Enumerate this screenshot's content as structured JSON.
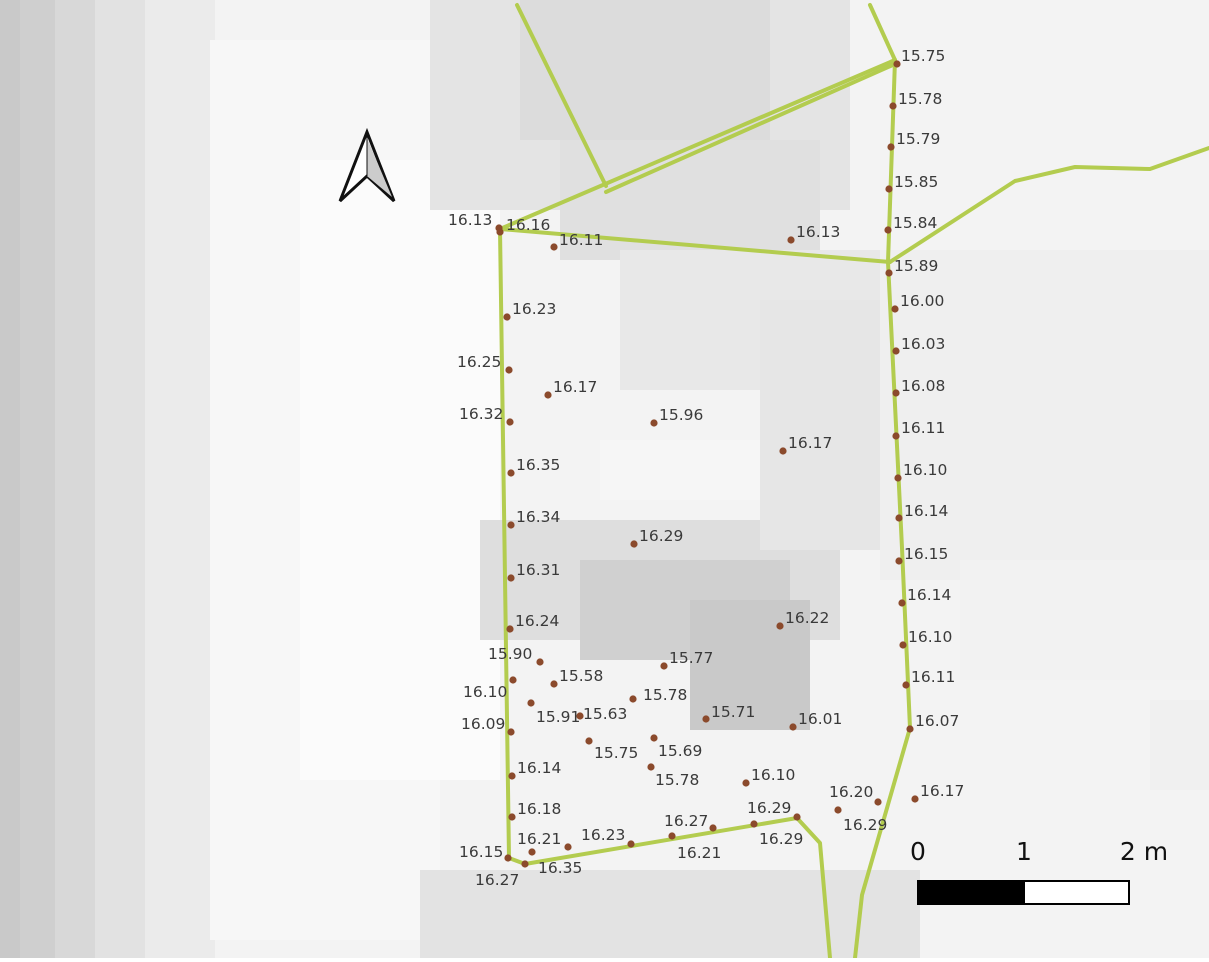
{
  "colors": {
    "boundary_line": "#b3cc4f",
    "spot_point": "#8b4a2c",
    "label_text": "#3a3a3a",
    "scale_dark": "#000000",
    "scale_light": "#ffffff"
  },
  "north_arrow": {
    "icon": "north-arrow-icon"
  },
  "scale_bar": {
    "labels": [
      "0",
      "1",
      "2 m"
    ],
    "unit": "m",
    "ticks_m": [
      0,
      1,
      2
    ]
  },
  "spot_heights": [
    "15.75",
    "15.78",
    "15.79",
    "15.85",
    "15.84",
    "16.13",
    "15.89",
    "16.00",
    "16.03",
    "16.08",
    "16.11",
    "16.10",
    "16.14",
    "16.15",
    "16.14",
    "16.10",
    "16.11",
    "16.07",
    "16.17",
    "16.13",
    "16.16",
    "16.11",
    "16.23",
    "16.25",
    "16.17",
    "16.32",
    "15.96",
    "16.17",
    "16.35",
    "16.34",
    "16.29",
    "16.31",
    "16.24",
    "16.22",
    "15.90",
    "15.77",
    "16.10",
    "15.58",
    "15.78",
    "15.91",
    "15.63",
    "15.71",
    "16.09",
    "16.01",
    "15.75",
    "15.69",
    "16.14",
    "15.78",
    "16.10",
    "16.18",
    "16.20",
    "16.29",
    "16.29",
    "16.29",
    "16.27",
    "16.21",
    "16.23",
    "16.21",
    "16.15",
    "16.35",
    "16.27"
  ]
}
